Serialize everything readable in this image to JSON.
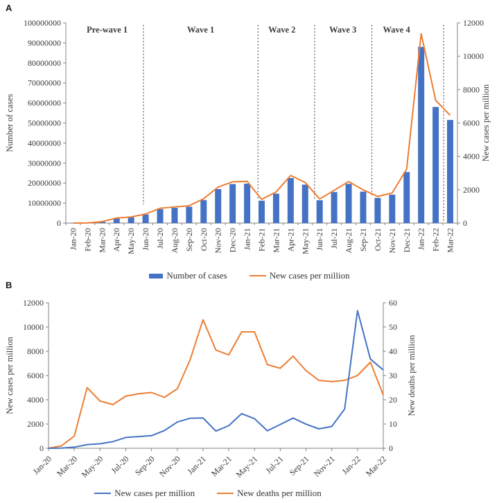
{
  "panels": {
    "a_label": "A",
    "b_label": "B"
  },
  "colors": {
    "bar_blue": "#4472C4",
    "line_orange": "#ED7D31",
    "line_blue": "#4472C4",
    "axis_gray": "#808080",
    "text": "#3a3a3a",
    "dashed": "#595959"
  },
  "chart_data": [
    {
      "id": "A",
      "type": "bar",
      "title": "",
      "categories": [
        "Jan-20",
        "Feb-20",
        "Mar-20",
        "Apr-20",
        "May-20",
        "Jun-20",
        "Jul-20",
        "Aug-20",
        "Sep-20",
        "Oct-20",
        "Nov-20",
        "Dec-20",
        "Jan-21",
        "Feb-21",
        "Mar-21",
        "Apr-21",
        "May-21",
        "Jun-21",
        "Jul-21",
        "Aug-21",
        "Sep-21",
        "Oct-21",
        "Nov-21",
        "Dec-21",
        "Jan-22",
        "Feb-22",
        "Mar-22"
      ],
      "series": [
        {
          "name": "Number of cases",
          "type": "bar",
          "axis": "left",
          "color": "#4472C4",
          "values": [
            10000,
            100000,
            700000,
            2400000,
            2900000,
            4300000,
            7000000,
            7600000,
            8200000,
            11500000,
            17000000,
            19500000,
            19700000,
            11200000,
            14700000,
            22500000,
            19200000,
            11400000,
            15500000,
            19600000,
            15700000,
            12600000,
            14200000,
            25500000,
            88000000,
            58000000,
            51500000
          ]
        },
        {
          "name": "New cases per million",
          "type": "line",
          "axis": "right",
          "color": "#ED7D31",
          "values": [
            1,
            12,
            90,
            300,
            370,
            545,
            890,
            965,
            1040,
            1460,
            2160,
            2475,
            2500,
            1420,
            1865,
            2855,
            2440,
            1445,
            1965,
            2490,
            1990,
            1600,
            1800,
            3240,
            11350,
            7360,
            6460
          ]
        }
      ],
      "left_axis": {
        "label": "Number of cases",
        "min": 0,
        "max": 100000000,
        "step": 10000000,
        "tick_labels": [
          "100000000",
          "90000000",
          "80000000",
          "70000000",
          "60000000",
          "50000000",
          "40000000",
          "30000000",
          "20000000",
          "10000000",
          "0"
        ]
      },
      "right_axis": {
        "label": "New cases per million",
        "min": 0,
        "max": 12000,
        "step": 2000,
        "tick_labels": [
          "12000",
          "10000",
          "8000",
          "6000",
          "4000",
          "2000",
          "0"
        ]
      },
      "waves": {
        "labels": [
          {
            "text": "Pre-wave 1",
            "center": 2.85
          },
          {
            "text": "Wave 1",
            "center": 9.3
          },
          {
            "text": "Wave 2",
            "center": 14.9
          },
          {
            "text": "Wave 3",
            "center": 19.1
          },
          {
            "text": "Wave 4",
            "center": 22.8
          }
        ],
        "boundaries": [
          5.35,
          13.25,
          17.15,
          21.1,
          26.05
        ]
      },
      "legend": [
        {
          "label": "Number of cases",
          "swatch": "bar",
          "color": "#4472C4"
        },
        {
          "label": "New cases per million",
          "swatch": "line",
          "color": "#ED7D31"
        }
      ]
    },
    {
      "id": "B",
      "type": "line",
      "title": "",
      "categories": [
        "Jan-20",
        "Feb-20",
        "Mar-20",
        "Apr-20",
        "May-20",
        "Jun-20",
        "Jul-20",
        "Aug-20",
        "Sep-20",
        "Oct-20",
        "Nov-20",
        "Dec-20",
        "Jan-21",
        "Feb-21",
        "Mar-21",
        "Apr-21",
        "May-21",
        "Jun-21",
        "Jul-21",
        "Aug-21",
        "Sep-21",
        "Oct-21",
        "Nov-21",
        "Dec-21",
        "Jan-22",
        "Feb-22",
        "Mar-22"
      ],
      "x_tick_every": 2,
      "series": [
        {
          "name": "New cases per million",
          "type": "line",
          "axis": "left",
          "color": "#4472C4",
          "values": [
            1,
            12,
            90,
            300,
            370,
            545,
            890,
            965,
            1040,
            1460,
            2160,
            2475,
            2500,
            1420,
            1865,
            2855,
            2440,
            1445,
            1965,
            2490,
            1990,
            1600,
            1800,
            3240,
            11350,
            7360,
            6460
          ]
        },
        {
          "name": "New deaths per million",
          "type": "line",
          "axis": "right",
          "color": "#ED7D31",
          "values": [
            0,
            1,
            5,
            25,
            19.5,
            18,
            21.5,
            22.5,
            23,
            21,
            24.5,
            36.5,
            53,
            40.5,
            38.5,
            48,
            48,
            34.5,
            33,
            38,
            32,
            28,
            27.5,
            28,
            30,
            35.5,
            22
          ]
        }
      ],
      "left_axis": {
        "label": "New cases per million",
        "min": 0,
        "max": 12000,
        "step": 2000,
        "tick_labels": [
          "12000",
          "10000",
          "8000",
          "6000",
          "4000",
          "2000",
          "0"
        ]
      },
      "right_axis": {
        "label": "New deaths per million",
        "min": 0,
        "max": 60,
        "step": 10,
        "tick_labels": [
          "60",
          "50",
          "40",
          "30",
          "20",
          "10",
          "0"
        ]
      },
      "legend": [
        {
          "label": "New cases per million",
          "swatch": "line",
          "color": "#4472C4"
        },
        {
          "label": "New deaths per million",
          "swatch": "line",
          "color": "#ED7D31"
        }
      ]
    }
  ]
}
